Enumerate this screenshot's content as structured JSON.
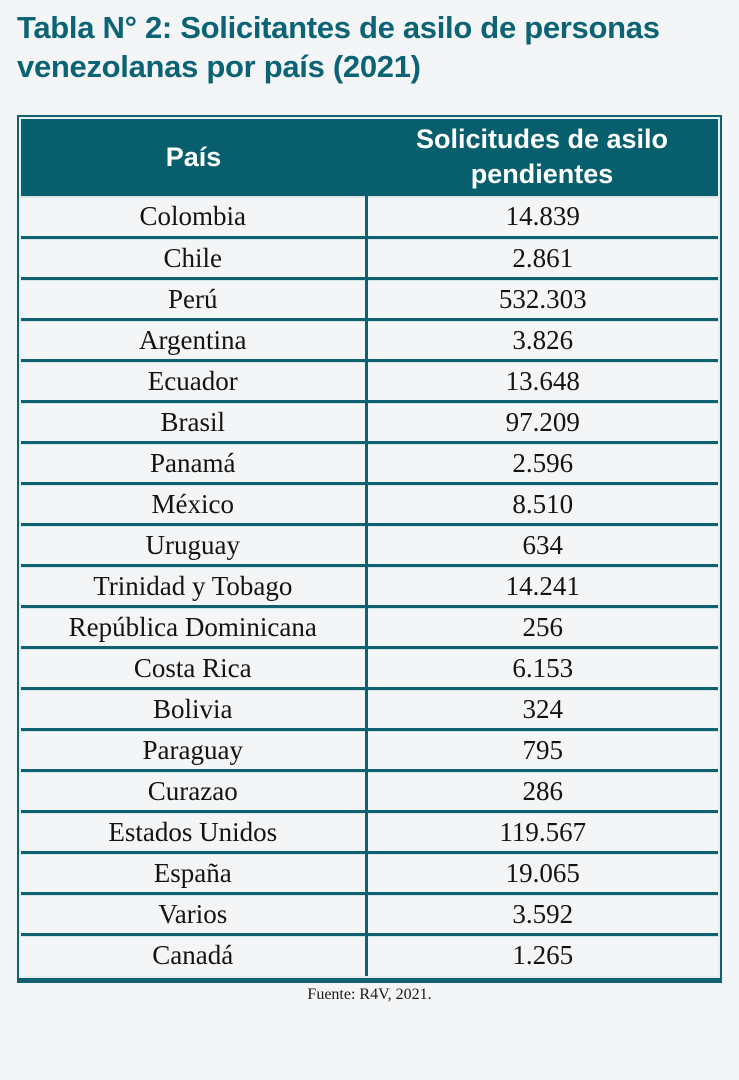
{
  "title": "Tabla N° 2: Solicitantes de asilo de personas venezolanas por país (2021)",
  "colors": {
    "accent": "#075f6d",
    "border": "#0e6170",
    "title_text": "#0b6375",
    "header_text": "#ffffff",
    "page_bg": "#f4f5f6"
  },
  "table": {
    "columns": [
      "País",
      "Solicitudes de asilo pendientes"
    ],
    "rows": [
      [
        "Colombia",
        "14.839"
      ],
      [
        "Chile",
        "2.861"
      ],
      [
        "Perú",
        "532.303"
      ],
      [
        "Argentina",
        "3.826"
      ],
      [
        "Ecuador",
        "13.648"
      ],
      [
        "Brasil",
        "97.209"
      ],
      [
        "Panamá",
        "2.596"
      ],
      [
        "México",
        "8.510"
      ],
      [
        "Uruguay",
        "634"
      ],
      [
        "Trinidad y Tobago",
        "14.241"
      ],
      [
        "República Dominicana",
        "256"
      ],
      [
        "Costa Rica",
        "6.153"
      ],
      [
        "Bolivia",
        "324"
      ],
      [
        "Paraguay",
        "795"
      ],
      [
        "Curazao",
        "286"
      ],
      [
        "Estados Unidos",
        "119.567"
      ],
      [
        "España",
        "19.065"
      ],
      [
        "Varios",
        "3.592"
      ],
      [
        "Canadá",
        "1.265"
      ]
    ],
    "source": "Fuente: R4V, 2021."
  },
  "chart_data": {
    "type": "table",
    "title": "Tabla N° 2: Solicitantes de asilo de personas venezolanas por país (2021)",
    "columns": [
      "País",
      "Solicitudes de asilo pendientes"
    ],
    "rows": [
      {
        "pais": "Colombia",
        "solicitudes_pendientes": 14839
      },
      {
        "pais": "Chile",
        "solicitudes_pendientes": 2861
      },
      {
        "pais": "Perú",
        "solicitudes_pendientes": 532303
      },
      {
        "pais": "Argentina",
        "solicitudes_pendientes": 3826
      },
      {
        "pais": "Ecuador",
        "solicitudes_pendientes": 13648
      },
      {
        "pais": "Brasil",
        "solicitudes_pendientes": 97209
      },
      {
        "pais": "Panamá",
        "solicitudes_pendientes": 2596
      },
      {
        "pais": "México",
        "solicitudes_pendientes": 8510
      },
      {
        "pais": "Uruguay",
        "solicitudes_pendientes": 634
      },
      {
        "pais": "Trinidad y Tobago",
        "solicitudes_pendientes": 14241
      },
      {
        "pais": "República Dominicana",
        "solicitudes_pendientes": 256
      },
      {
        "pais": "Costa Rica",
        "solicitudes_pendientes": 6153
      },
      {
        "pais": "Bolivia",
        "solicitudes_pendientes": 324
      },
      {
        "pais": "Paraguay",
        "solicitudes_pendientes": 795
      },
      {
        "pais": "Curazao",
        "solicitudes_pendientes": 286
      },
      {
        "pais": "Estados Unidos",
        "solicitudes_pendientes": 119567
      },
      {
        "pais": "España",
        "solicitudes_pendientes": 19065
      },
      {
        "pais": "Varios",
        "solicitudes_pendientes": 3592
      },
      {
        "pais": "Canadá",
        "solicitudes_pendientes": 1265
      }
    ],
    "source": "Fuente: R4V, 2021."
  }
}
